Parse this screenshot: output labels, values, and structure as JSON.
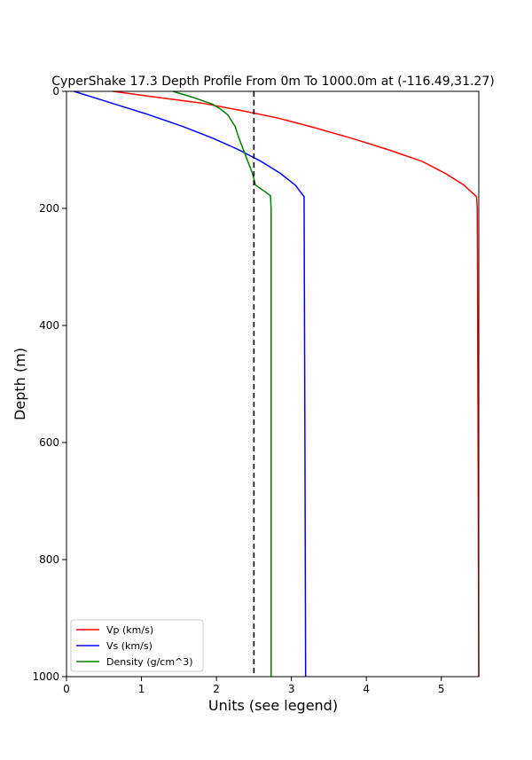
{
  "chart_data": {
    "type": "line",
    "title": "CyperShake 17.3 Depth Profile From 0m To 1000.0m at (-116.49,31.27)",
    "xlabel": "Units (see legend)",
    "ylabel": "Depth (m)",
    "xlim": [
      0,
      5.5
    ],
    "ylim": [
      0,
      1000
    ],
    "y_inverted": true,
    "grid": false,
    "legend_position": "lower-left",
    "x_ticks": [
      0,
      1,
      2,
      3,
      4,
      5
    ],
    "y_ticks": [
      0,
      200,
      400,
      600,
      800,
      1000
    ],
    "reference_line": {
      "x": 2.5,
      "style": "dashed",
      "color": "#000000"
    },
    "series": [
      {
        "name": "Vp (km/s)",
        "color": "#ff0000",
        "points": [
          [
            0.62,
            0
          ],
          [
            1.2,
            10
          ],
          [
            1.8,
            20
          ],
          [
            2.3,
            32
          ],
          [
            2.8,
            45
          ],
          [
            3.25,
            60
          ],
          [
            3.8,
            80
          ],
          [
            4.3,
            100
          ],
          [
            4.75,
            120
          ],
          [
            5.05,
            140
          ],
          [
            5.3,
            160
          ],
          [
            5.47,
            180
          ],
          [
            5.48,
            200
          ],
          [
            5.49,
            600
          ],
          [
            5.5,
            1000
          ]
        ]
      },
      {
        "name": "Vs (km/s)",
        "color": "#0000ff",
        "points": [
          [
            0.1,
            0
          ],
          [
            0.6,
            20
          ],
          [
            1.1,
            40
          ],
          [
            1.55,
            60
          ],
          [
            1.95,
            80
          ],
          [
            2.3,
            100
          ],
          [
            2.6,
            120
          ],
          [
            2.85,
            140
          ],
          [
            3.05,
            160
          ],
          [
            3.17,
            180
          ],
          [
            3.17,
            200
          ],
          [
            3.18,
            600
          ],
          [
            3.19,
            1000
          ]
        ]
      },
      {
        "name": "Density (g/cm^3)",
        "color": "#008000",
        "points": [
          [
            1.42,
            0
          ],
          [
            1.68,
            10
          ],
          [
            1.95,
            22
          ],
          [
            2.05,
            30
          ],
          [
            2.15,
            40
          ],
          [
            2.25,
            60
          ],
          [
            2.3,
            80
          ],
          [
            2.36,
            100
          ],
          [
            2.42,
            120
          ],
          [
            2.48,
            140
          ],
          [
            2.52,
            160
          ],
          [
            2.72,
            178
          ],
          [
            2.73,
            200
          ],
          [
            2.73,
            1000
          ]
        ]
      }
    ]
  }
}
